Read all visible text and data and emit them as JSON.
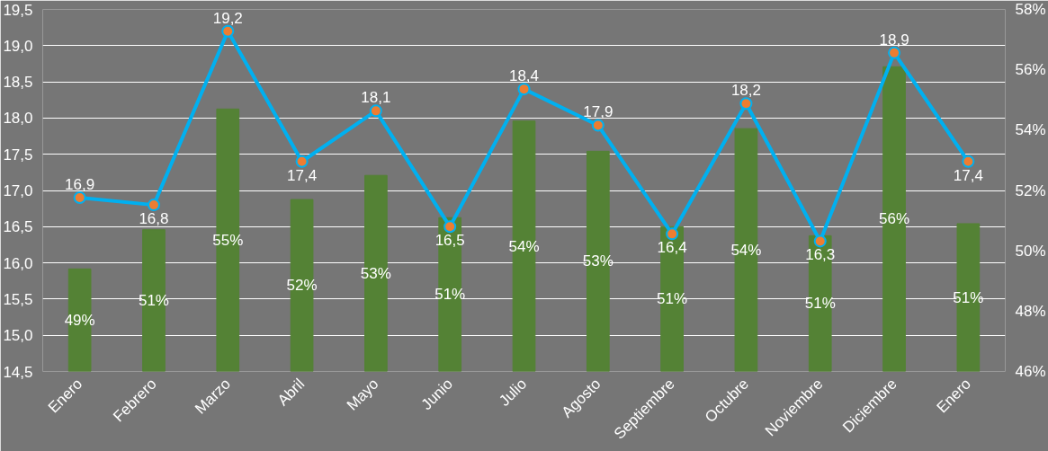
{
  "chart_data": {
    "type": "bar",
    "categories": [
      "Enero",
      "Febrero",
      "Marzo",
      "Abril",
      "Mayo",
      "Junio",
      "Julio",
      "Agosto",
      "Septiembre",
      "Octubre",
      "Noviembre",
      "Diciembre",
      "Enero"
    ],
    "series": [
      {
        "axis": "y2",
        "color": "#548235",
        "values": [
          49.4,
          50.7,
          54.7,
          51.7,
          52.5,
          51.1,
          54.3,
          53.3,
          50.8,
          54.05,
          50.5,
          56.1,
          50.9
        ],
        "value_labels": [
          "49%",
          "51%",
          "55%",
          "52%",
          "53%",
          "51%",
          "54%",
          "53%",
          "51%",
          "54%",
          "51%",
          "56%",
          "51%"
        ]
      },
      {
        "type": "line",
        "axis": "y",
        "color": "#00b0f0",
        "marker": "circle",
        "values": [
          16.9,
          16.8,
          19.2,
          17.4,
          18.1,
          16.5,
          18.4,
          17.9,
          16.4,
          18.2,
          16.3,
          18.9,
          17.4
        ],
        "value_labels": [
          "16,9",
          "16,8",
          "19,2",
          "17,4",
          "18,1",
          "16,5",
          "18,4",
          "17,9",
          "16,4",
          "18,2",
          "16,3",
          "18,9",
          "17,4"
        ]
      }
    ],
    "ylim": [
      14.5,
      19.5
    ],
    "yticks": [
      {
        "value": 14.5,
        "label": "14,5"
      },
      {
        "value": 15,
        "label": "15,0"
      },
      {
        "value": 15.5,
        "label": "15,5"
      },
      {
        "value": 16,
        "label": "16,0"
      },
      {
        "value": 16.5,
        "label": "16,5"
      },
      {
        "value": 17,
        "label": "17,0"
      },
      {
        "value": 17.5,
        "label": "17,5"
      },
      {
        "value": 18,
        "label": "18,0"
      },
      {
        "value": 18.5,
        "label": "18,5"
      },
      {
        "value": 19,
        "label": "19,0"
      },
      {
        "value": 19.5,
        "label": "19,5"
      }
    ],
    "y2lim": [
      46,
      58
    ],
    "y2ticks": [
      {
        "value": 46,
        "label": "46%"
      },
      {
        "value": 48,
        "label": "48%"
      },
      {
        "value": 50,
        "label": "50%"
      },
      {
        "value": 52,
        "label": "52%"
      },
      {
        "value": 54,
        "label": "54%"
      },
      {
        "value": 56,
        "label": "56%"
      },
      {
        "value": 58,
        "label": "58%"
      }
    ],
    "grid": "y"
  }
}
